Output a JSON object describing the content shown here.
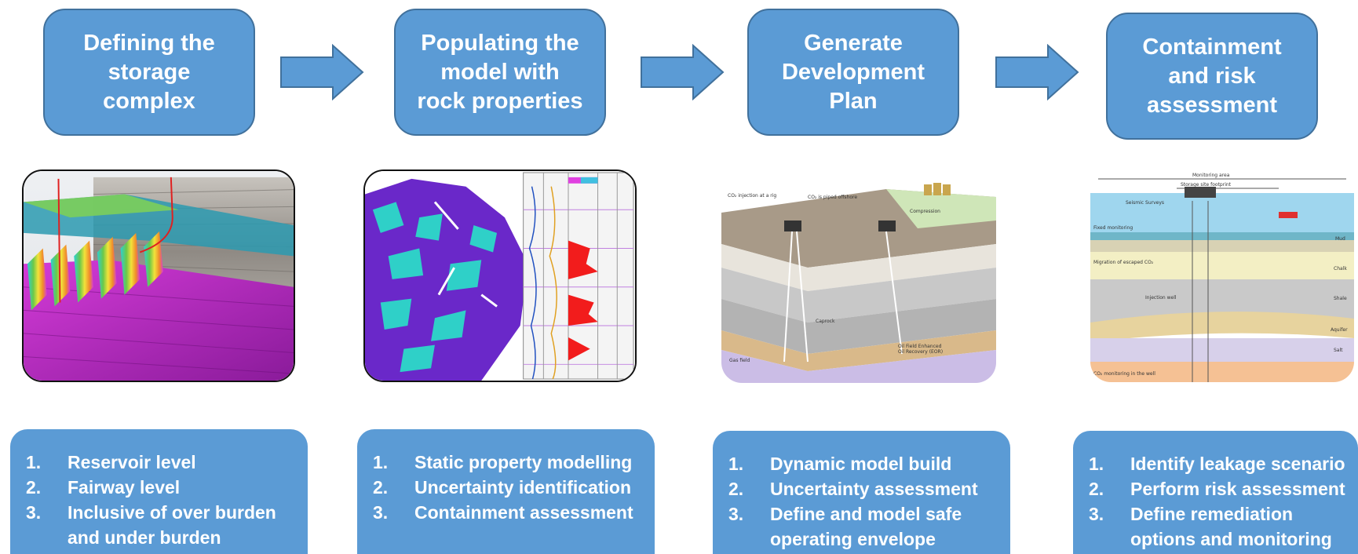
{
  "steps": [
    {
      "title": "Defining the\nstorage\ncomplex"
    },
    {
      "title": "Populating the\nmodel with\nrock properties"
    },
    {
      "title": "Generate\nDevelopment\nPlan"
    },
    {
      "title": "Containment\nand risk\nassessment"
    }
  ],
  "lists": [
    {
      "items": [
        {
          "num": "1.",
          "text": "Reservoir level"
        },
        {
          "num": "2.",
          "text": "Fairway level"
        },
        {
          "num": "3.",
          "text": "Inclusive of over burden\nand under burden"
        }
      ]
    },
    {
      "items": [
        {
          "num": "1.",
          "text": "Static  property modelling"
        },
        {
          "num": "2.",
          "text": "Uncertainty identification"
        },
        {
          "num": "3.",
          "text": "Containment assessment"
        }
      ]
    },
    {
      "items": [
        {
          "num": "1.",
          "text": "Dynamic model build"
        },
        {
          "num": "2.",
          "text": "Uncertainty assessment"
        },
        {
          "num": "3.",
          "text": "Define and model safe\noperating envelope"
        }
      ]
    },
    {
      "items": [
        {
          "num": "1.",
          "text": "Identify leakage scenario"
        },
        {
          "num": "2.",
          "text": "Perform risk assessment"
        },
        {
          "num": "3.",
          "text": "Define remediation\noptions and monitoring"
        }
      ]
    }
  ],
  "colors": {
    "box_fill": "#5b9bd5",
    "box_border": "#41719c",
    "text": "#ffffff"
  },
  "images": [
    {
      "icon": "seismic-volume-image"
    },
    {
      "icon": "property-model-image"
    },
    {
      "icon": "injection-site-block-diagram-image"
    },
    {
      "icon": "monitoring-cross-section-image"
    }
  ]
}
